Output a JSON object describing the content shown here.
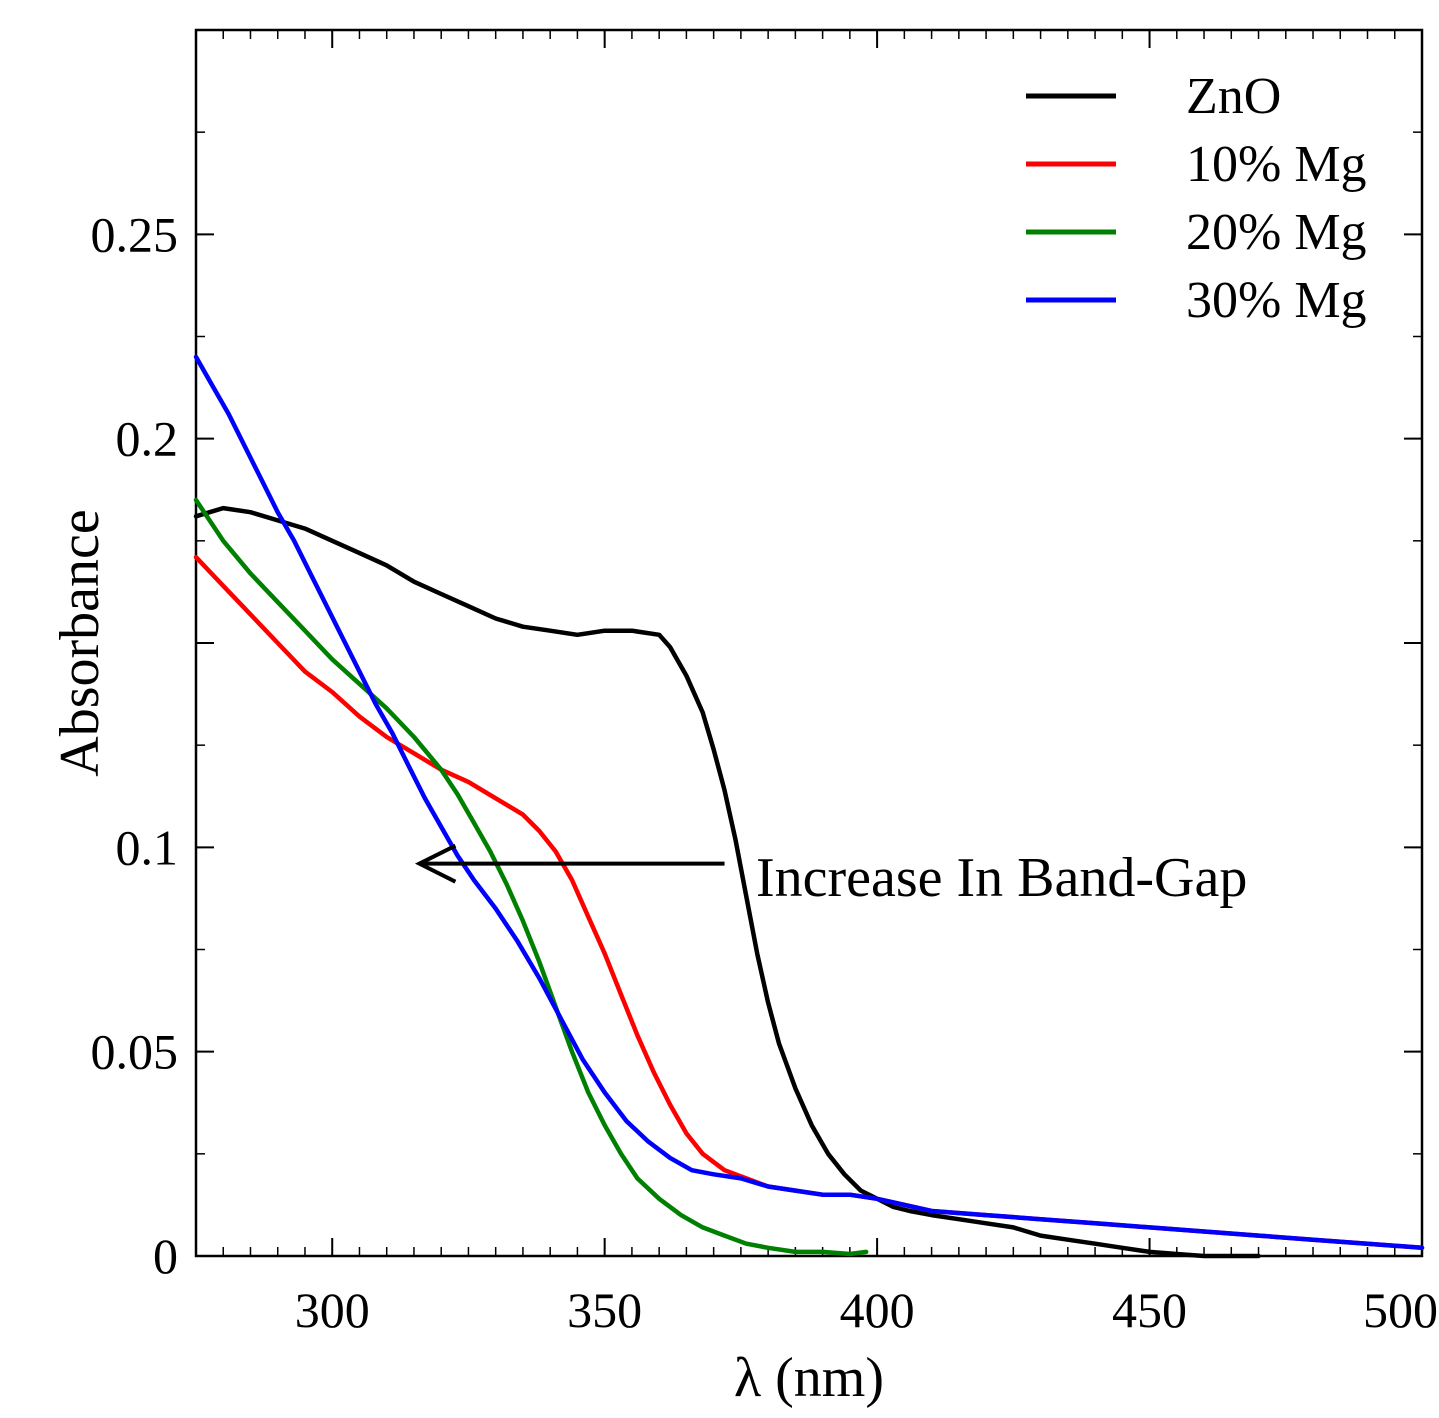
{
  "chart_data": {
    "type": "line",
    "title": "",
    "xlabel": "λ (nm)",
    "ylabel": "Absorbance",
    "xlim": [
      275,
      500
    ],
    "ylim": [
      0,
      0.3
    ],
    "x_ticks": [
      300,
      350,
      400,
      450,
      500
    ],
    "x_tick_labels": [
      "300",
      "350",
      "400",
      "450",
      "500"
    ],
    "y_ticks": [
      0,
      0.05,
      0.1,
      0.2,
      0.25
    ],
    "y_tick_labels": [
      "0",
      "0.05",
      "0.1",
      "0.2",
      "0.25"
    ],
    "x_minor_step": 5,
    "y_minor_step": 0.025,
    "grid": false,
    "legend_position": "top-right",
    "series": [
      {
        "name": "ZnO",
        "color": "#000000",
        "points": [
          [
            275,
            0.181
          ],
          [
            280,
            0.183
          ],
          [
            285,
            0.182
          ],
          [
            290,
            0.18
          ],
          [
            295,
            0.178
          ],
          [
            300,
            0.175
          ],
          [
            305,
            0.172
          ],
          [
            310,
            0.169
          ],
          [
            315,
            0.165
          ],
          [
            320,
            0.162
          ],
          [
            325,
            0.159
          ],
          [
            330,
            0.156
          ],
          [
            335,
            0.154
          ],
          [
            340,
            0.153
          ],
          [
            345,
            0.152
          ],
          [
            350,
            0.153
          ],
          [
            355,
            0.153
          ],
          [
            360,
            0.152
          ],
          [
            362,
            0.149
          ],
          [
            365,
            0.142
          ],
          [
            368,
            0.133
          ],
          [
            370,
            0.124
          ],
          [
            372,
            0.114
          ],
          [
            374,
            0.102
          ],
          [
            376,
            0.088
          ],
          [
            378,
            0.074
          ],
          [
            380,
            0.062
          ],
          [
            382,
            0.052
          ],
          [
            385,
            0.041
          ],
          [
            388,
            0.032
          ],
          [
            391,
            0.025
          ],
          [
            394,
            0.02
          ],
          [
            397,
            0.016
          ],
          [
            400,
            0.014
          ],
          [
            403,
            0.012
          ],
          [
            406,
            0.011
          ],
          [
            410,
            0.01
          ],
          [
            415,
            0.009
          ],
          [
            420,
            0.008
          ],
          [
            425,
            0.007
          ],
          [
            430,
            0.005
          ],
          [
            435,
            0.004
          ],
          [
            440,
            0.003
          ],
          [
            445,
            0.002
          ],
          [
            450,
            0.001
          ],
          [
            455,
            0.0005
          ],
          [
            460,
            0.0
          ],
          [
            465,
            0.0
          ],
          [
            470,
            0.0
          ]
        ]
      },
      {
        "name": "10% Mg",
        "color": "#ff0000",
        "points": [
          [
            275,
            0.171
          ],
          [
            280,
            0.164
          ],
          [
            285,
            0.157
          ],
          [
            290,
            0.15
          ],
          [
            295,
            0.143
          ],
          [
            300,
            0.138
          ],
          [
            305,
            0.132
          ],
          [
            310,
            0.127
          ],
          [
            315,
            0.123
          ],
          [
            320,
            0.119
          ],
          [
            325,
            0.116
          ],
          [
            330,
            0.112
          ],
          [
            335,
            0.108
          ],
          [
            338,
            0.104
          ],
          [
            341,
            0.099
          ],
          [
            344,
            0.092
          ],
          [
            347,
            0.083
          ],
          [
            350,
            0.074
          ],
          [
            353,
            0.064
          ],
          [
            356,
            0.054
          ],
          [
            359,
            0.045
          ],
          [
            362,
            0.037
          ],
          [
            365,
            0.03
          ],
          [
            368,
            0.025
          ],
          [
            372,
            0.021
          ],
          [
            376,
            0.019
          ],
          [
            380,
            0.017
          ],
          [
            385,
            0.016
          ],
          [
            390,
            0.015
          ],
          [
            395,
            0.015
          ],
          [
            400,
            0.014
          ],
          [
            410,
            0.011
          ],
          [
            420,
            0.01
          ],
          [
            430,
            0.009
          ],
          [
            440,
            0.008
          ],
          [
            450,
            0.007
          ],
          [
            460,
            0.006
          ],
          [
            470,
            0.005
          ],
          [
            480,
            0.004
          ],
          [
            490,
            0.003
          ],
          [
            500,
            0.002
          ]
        ]
      },
      {
        "name": "20% Mg",
        "color": "#008000",
        "points": [
          [
            275,
            0.185
          ],
          [
            280,
            0.175
          ],
          [
            285,
            0.167
          ],
          [
            290,
            0.16
          ],
          [
            295,
            0.153
          ],
          [
            300,
            0.146
          ],
          [
            305,
            0.14
          ],
          [
            310,
            0.134
          ],
          [
            315,
            0.127
          ],
          [
            320,
            0.119
          ],
          [
            323,
            0.113
          ],
          [
            326,
            0.106
          ],
          [
            329,
            0.099
          ],
          [
            332,
            0.091
          ],
          [
            335,
            0.082
          ],
          [
            338,
            0.072
          ],
          [
            341,
            0.061
          ],
          [
            344,
            0.05
          ],
          [
            347,
            0.04
          ],
          [
            350,
            0.032
          ],
          [
            353,
            0.025
          ],
          [
            356,
            0.019
          ],
          [
            360,
            0.014
          ],
          [
            364,
            0.01
          ],
          [
            368,
            0.007
          ],
          [
            372,
            0.005
          ],
          [
            376,
            0.003
          ],
          [
            380,
            0.002
          ],
          [
            385,
            0.001
          ],
          [
            390,
            0.001
          ],
          [
            395,
            0.0005
          ],
          [
            398,
            0.001
          ]
        ]
      },
      {
        "name": "30% Mg",
        "color": "#0000ff",
        "points": [
          [
            275,
            0.22
          ],
          [
            278,
            0.213
          ],
          [
            281,
            0.206
          ],
          [
            284,
            0.198
          ],
          [
            287,
            0.19
          ],
          [
            290,
            0.182
          ],
          [
            293,
            0.175
          ],
          [
            296,
            0.167
          ],
          [
            299,
            0.159
          ],
          [
            302,
            0.151
          ],
          [
            305,
            0.143
          ],
          [
            308,
            0.135
          ],
          [
            311,
            0.128
          ],
          [
            314,
            0.12
          ],
          [
            317,
            0.112
          ],
          [
            320,
            0.105
          ],
          [
            323,
            0.098
          ],
          [
            326,
            0.092
          ],
          [
            330,
            0.085
          ],
          [
            334,
            0.077
          ],
          [
            338,
            0.068
          ],
          [
            342,
            0.058
          ],
          [
            346,
            0.048
          ],
          [
            350,
            0.04
          ],
          [
            354,
            0.033
          ],
          [
            358,
            0.028
          ],
          [
            362,
            0.024
          ],
          [
            366,
            0.021
          ],
          [
            370,
            0.02
          ],
          [
            375,
            0.019
          ],
          [
            380,
            0.017
          ],
          [
            385,
            0.016
          ],
          [
            390,
            0.015
          ],
          [
            395,
            0.015
          ],
          [
            400,
            0.014
          ],
          [
            410,
            0.011
          ],
          [
            420,
            0.01
          ],
          [
            430,
            0.009
          ],
          [
            440,
            0.008
          ],
          [
            450,
            0.007
          ],
          [
            460,
            0.006
          ],
          [
            470,
            0.005
          ],
          [
            480,
            0.004
          ],
          [
            490,
            0.003
          ],
          [
            500,
            0.002
          ]
        ]
      }
    ],
    "annotations": [
      {
        "text": "Increase In Band-Gap",
        "arrow_from": [
          372,
          0.096
        ],
        "arrow_to": [
          316,
          0.096
        ]
      }
    ]
  }
}
